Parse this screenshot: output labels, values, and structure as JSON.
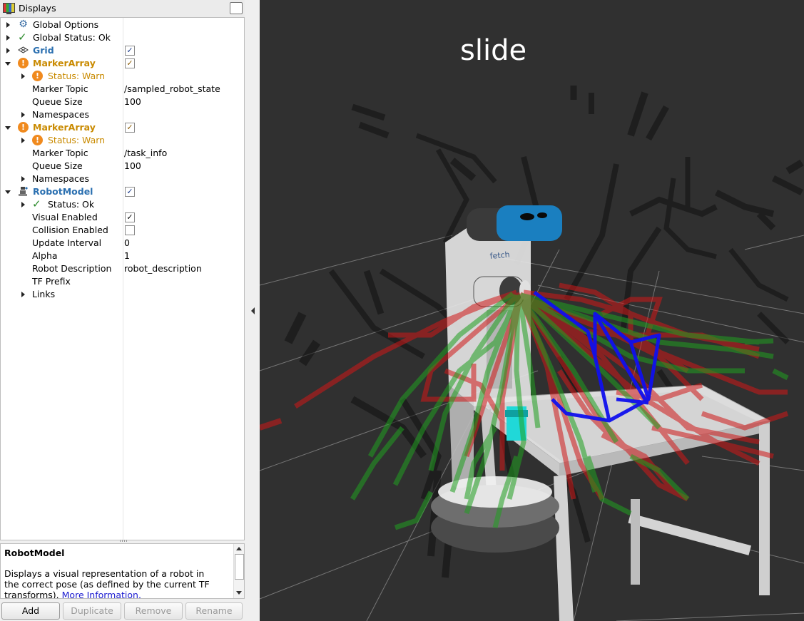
{
  "panel": {
    "title": "Displays",
    "tree": [
      {
        "label": "Global Options"
      },
      {
        "label": "Global Status: Ok"
      },
      {
        "label": "Grid",
        "checked": true
      },
      {
        "label": "MarkerArray",
        "checked": true
      },
      {
        "label": "Status: Warn"
      },
      {
        "label": "Marker Topic",
        "value": "/sampled_robot_state"
      },
      {
        "label": "Queue Size",
        "value": "100"
      },
      {
        "label": "Namespaces"
      },
      {
        "label": "MarkerArray",
        "checked": true
      },
      {
        "label": "Status: Warn"
      },
      {
        "label": "Marker Topic",
        "value": "/task_info"
      },
      {
        "label": "Queue Size",
        "value": "100"
      },
      {
        "label": "Namespaces"
      },
      {
        "label": "RobotModel",
        "checked": true
      },
      {
        "label": "Status: Ok"
      },
      {
        "label": "Visual Enabled",
        "checked": true
      },
      {
        "label": "Collision Enabled",
        "checked": false
      },
      {
        "label": "Update Interval",
        "value": "0"
      },
      {
        "label": "Alpha",
        "value": "1"
      },
      {
        "label": "Robot Description",
        "value": "robot_description"
      },
      {
        "label": "TF Prefix",
        "value": ""
      },
      {
        "label": "Links"
      }
    ],
    "description": {
      "title": "RobotModel",
      "body": "Displays a visual representation of a robot in the correct pose (as defined by the current TF transforms).",
      "link": "More Information."
    },
    "buttons": {
      "add": "Add",
      "duplicate": "Duplicate",
      "remove": "Remove",
      "rename": "Rename"
    }
  },
  "viewport": {
    "text": "slide",
    "colors": {
      "background": "#303030",
      "grid": "#a0a0a0",
      "red": "#d01818",
      "green": "#20a020",
      "blue": "#1010ee",
      "cyan": "#20d8d8"
    }
  }
}
